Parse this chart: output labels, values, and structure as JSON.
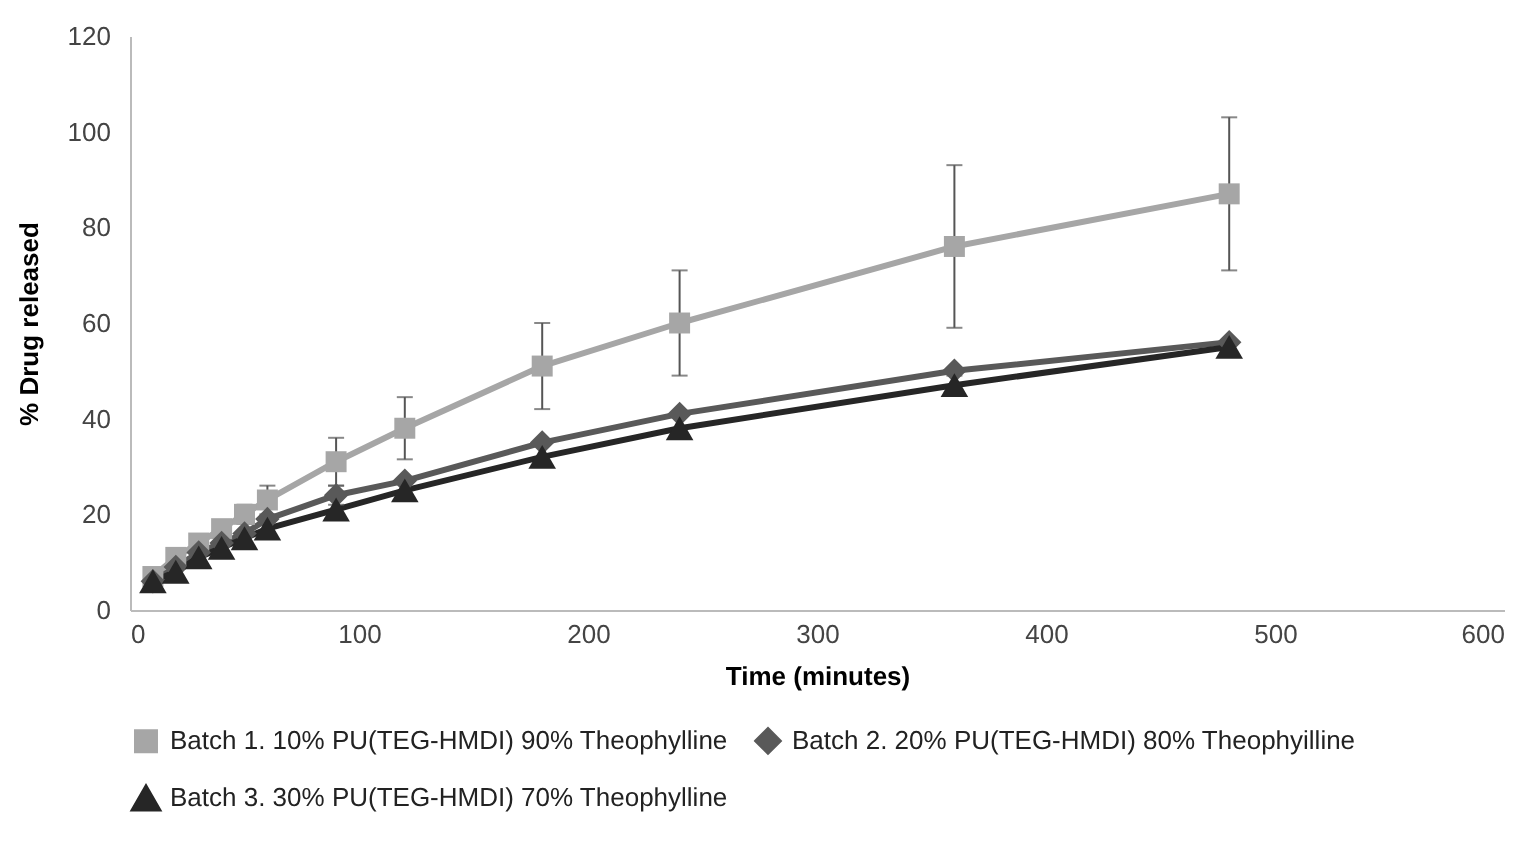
{
  "chart_data": {
    "type": "line",
    "xlabel": "Time (minutes)",
    "ylabel": "% Drug released",
    "x": [
      10,
      20,
      30,
      40,
      50,
      60,
      90,
      120,
      180,
      240,
      360,
      480
    ],
    "series": [
      {
        "name": "Batch 1. 10% PU(TEG-HMDI) 90% Theophylline",
        "color": "#a6a6a6",
        "marker": "square",
        "values": [
          7,
          11,
          14,
          17,
          20,
          23,
          31,
          38,
          51,
          60,
          76,
          87
        ],
        "errors": [
          1,
          1,
          1,
          1.5,
          2,
          3,
          5,
          6.5,
          9,
          11,
          17,
          16
        ]
      },
      {
        "name": "Batch 2. 20% PU(TEG-HMDI) 80% Theophyilline",
        "color": "#595959",
        "marker": "diamond",
        "values": [
          6,
          9,
          12,
          14,
          16,
          19,
          24,
          27,
          35,
          41,
          50,
          56
        ],
        "errors": [
          null,
          null,
          null,
          null,
          null,
          null,
          2,
          null,
          null,
          null,
          null,
          null
        ]
      },
      {
        "name": "Batch 3. 30% PU(TEG-HMDI) 70% Theophylline",
        "color": "#262626",
        "marker": "triangle",
        "values": [
          6,
          8,
          11,
          13,
          15,
          17,
          21,
          25,
          32,
          38,
          47,
          55
        ],
        "errors": [
          null,
          null,
          null,
          null,
          null,
          null,
          null,
          null,
          null,
          null,
          2,
          null
        ]
      }
    ],
    "xlim": [
      0,
      600
    ],
    "xticks": [
      0,
      100,
      200,
      300,
      400,
      500,
      600
    ],
    "ylim": [
      0,
      120
    ],
    "yticks": [
      0,
      20,
      40,
      60,
      80,
      100,
      120
    ],
    "grid": false,
    "legend": "bottom"
  }
}
